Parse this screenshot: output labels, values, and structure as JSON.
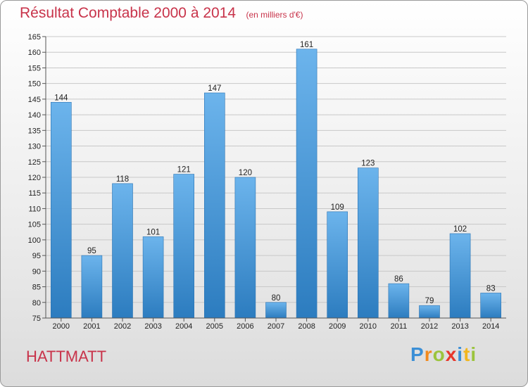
{
  "title": "Résultat Comptable 2000 à 2014",
  "subtitle": "(en milliers d'€)",
  "commune": "HATTMATT",
  "logo": {
    "text": "Proxiti",
    "letters": [
      "P",
      "r",
      "o",
      "x",
      "i",
      "t",
      "i"
    ],
    "colors": [
      "#3b8fd6",
      "#f28a1e",
      "#9bc43c",
      "#e8372b",
      "#3b8fd6",
      "#f2b61e",
      "#9bc43c"
    ]
  },
  "colors": {
    "bar_light": "#6cb4ec",
    "bar_dark": "#2c7cbf",
    "title": "#c8334a",
    "grid": "#c8c8c8"
  },
  "chart_data": {
    "type": "bar",
    "title": "Résultat Comptable 2000 à 2014",
    "subtitle": "(en milliers d'€)",
    "categories": [
      "2000",
      "2001",
      "2002",
      "2003",
      "2004",
      "2005",
      "2006",
      "2007",
      "2008",
      "2009",
      "2010",
      "2011",
      "2012",
      "2013",
      "2014"
    ],
    "values": [
      144,
      95,
      118,
      101,
      121,
      147,
      120,
      80,
      161,
      109,
      123,
      86,
      79,
      102,
      83
    ],
    "ylim": [
      75,
      165
    ],
    "yticks": [
      75,
      80,
      85,
      90,
      95,
      100,
      105,
      110,
      115,
      120,
      125,
      130,
      135,
      140,
      145,
      150,
      155,
      160,
      165
    ],
    "grid": true,
    "data_labels": true
  }
}
